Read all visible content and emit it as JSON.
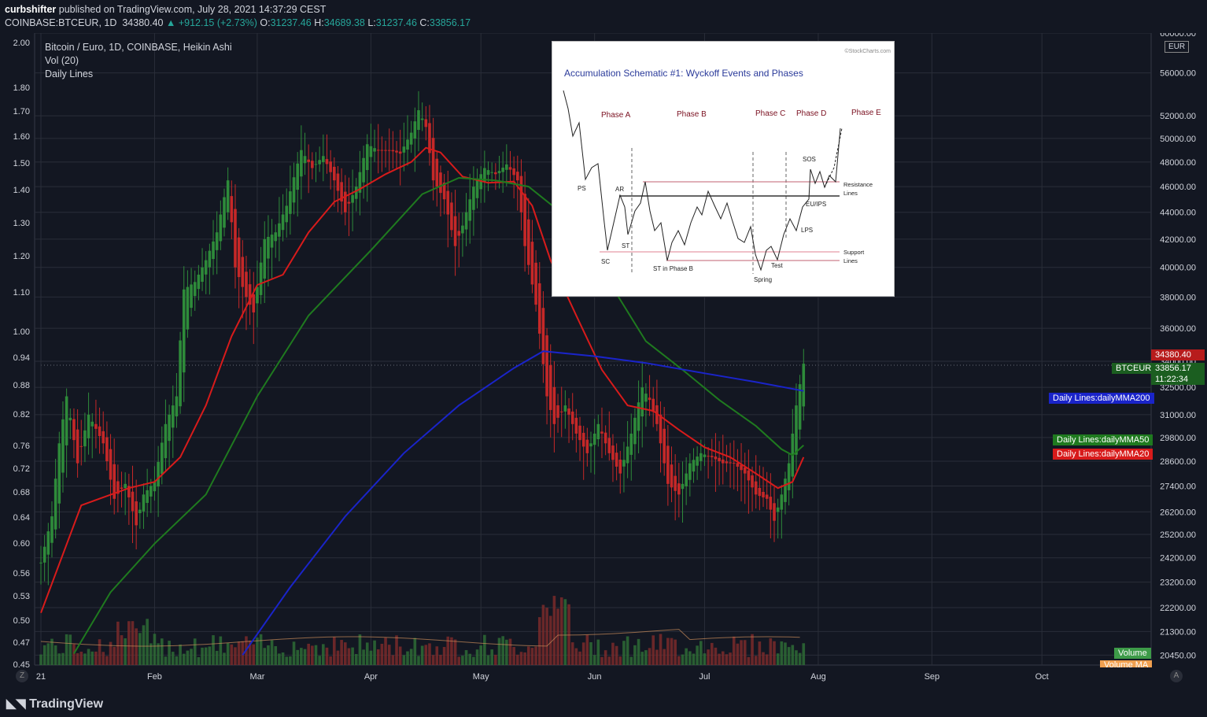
{
  "header": {
    "publisher": "curbshifter",
    "published_text": "published on TradingView.com, July 28, 2021 14:37:29 CEST",
    "symbol": "COINBASE:BTCEUR, 1D",
    "last": "34380.40",
    "change": "▲ +912.15 (+2.73%)",
    "o_label": "O:",
    "o": "31237.46",
    "h_label": "H:",
    "h": "34689.38",
    "l_label": "L:",
    "l": "31237.46",
    "c_label": "C:",
    "c": "33856.17"
  },
  "legend": {
    "title": "Bitcoin / Euro, 1D, COINBASE, Heikin Ashi",
    "vol": "Vol (20)",
    "lines": "Daily Lines"
  },
  "currency": "EUR",
  "price_tags": {
    "last": "34380.40",
    "symbol": "BTCEUR",
    "close": "33856.17",
    "countdown": "11:22:34",
    "mma200": "Daily Lines:dailyMMA200",
    "mma50": "Daily Lines:dailyMMA50",
    "mma20": "Daily Lines:dailyMMA20",
    "volume": "Volume",
    "volume_ma": "Volume MA"
  },
  "footer": {
    "logo": "TradingView",
    "zoom_left": "Z",
    "auto": "A"
  },
  "inset": {
    "watermark": "©StockCharts.com",
    "title": "Accumulation Schematic #1: Wyckoff Events and Phases",
    "phases": [
      "Phase A",
      "Phase B",
      "Phase C",
      "Phase D",
      "Phase E"
    ],
    "events": [
      "PS",
      "AR",
      "ST",
      "SC",
      "ST in Phase B",
      "Spring",
      "Test",
      "LPS",
      "EU/IPS",
      "SOS"
    ],
    "resistance": [
      "Resistance",
      "Lines"
    ],
    "support": [
      "Support",
      "Lines"
    ]
  },
  "colors": {
    "background": "#131722",
    "grid": "#2a2e39",
    "up": "#26a69a",
    "candle_up": "#2e8b3a",
    "candle_down": "#c62828",
    "mma20": "#d81b1b",
    "mma50": "#1f7a1f",
    "mma200": "#1a24c9"
  },
  "chart_data": {
    "type": "candlestick",
    "title": "Bitcoin / Euro, 1D, COINBASE, Heikin Ashi",
    "y_axis": {
      "ticks": [
        "60000.00",
        "56000.00",
        "52000.00",
        "50000.00",
        "48000.00",
        "46000.00",
        "44000.00",
        "42000.00",
        "40000.00",
        "38000.00",
        "36000.00",
        "34000.00",
        "32500.00",
        "31000.00",
        "29800.00",
        "28600.00",
        "27400.00",
        "26200.00",
        "25200.00",
        "24200.00",
        "23200.00",
        "22200.00",
        "21300.00",
        "20450.00"
      ],
      "scale": "log",
      "unit": "EUR"
    },
    "left_axis_ticks": [
      "2.00",
      "1.80",
      "1.70",
      "1.60",
      "1.50",
      "1.40",
      "1.30",
      "1.20",
      "1.10",
      "1.00",
      "0.94",
      "0.88",
      "0.82",
      "0.76",
      "0.72",
      "0.68",
      "0.64",
      "0.60",
      "0.56",
      "0.53",
      "0.50",
      "0.47",
      "0.45"
    ],
    "x_axis": {
      "ticks": [
        "21",
        "Feb",
        "Mar",
        "Apr",
        "May",
        "Jun",
        "Jul",
        "Aug",
        "Sep",
        "Oct"
      ]
    },
    "close_series": [
      [
        "2021-01-01",
        24000
      ],
      [
        "2021-01-04",
        26000
      ],
      [
        "2021-01-06",
        29500
      ],
      [
        "2021-01-08",
        32000
      ],
      [
        "2021-01-11",
        28500
      ],
      [
        "2021-01-14",
        31000
      ],
      [
        "2021-01-18",
        29500
      ],
      [
        "2021-01-21",
        26800
      ],
      [
        "2021-01-24",
        27500
      ],
      [
        "2021-01-27",
        25600
      ],
      [
        "2021-01-29",
        27000
      ],
      [
        "2021-02-01",
        27600
      ],
      [
        "2021-02-04",
        30500
      ],
      [
        "2021-02-07",
        32000
      ],
      [
        "2021-02-09",
        38500
      ],
      [
        "2021-02-12",
        39000
      ],
      [
        "2021-02-15",
        40500
      ],
      [
        "2021-02-18",
        42500
      ],
      [
        "2021-02-21",
        46500
      ],
      [
        "2021-02-23",
        40000
      ],
      [
        "2021-02-26",
        38000
      ],
      [
        "2021-02-28",
        37000
      ],
      [
        "2021-03-03",
        42000
      ],
      [
        "2021-03-06",
        42500
      ],
      [
        "2021-03-09",
        44500
      ],
      [
        "2021-03-13",
        49000
      ],
      [
        "2021-03-16",
        47500
      ],
      [
        "2021-03-19",
        48500
      ],
      [
        "2021-03-22",
        46500
      ],
      [
        "2021-03-25",
        44000
      ],
      [
        "2021-03-28",
        46000
      ],
      [
        "2021-03-31",
        49500
      ],
      [
        "2021-04-03",
        49000
      ],
      [
        "2021-04-06",
        49000
      ],
      [
        "2021-04-09",
        48700
      ],
      [
        "2021-04-12",
        50500
      ],
      [
        "2021-04-14",
        52500
      ],
      [
        "2021-04-16",
        51000
      ],
      [
        "2021-04-18",
        46500
      ],
      [
        "2021-04-21",
        45000
      ],
      [
        "2021-04-24",
        41500
      ],
      [
        "2021-04-26",
        43000
      ],
      [
        "2021-04-29",
        46000
      ],
      [
        "2021-05-02",
        47500
      ],
      [
        "2021-05-05",
        47000
      ],
      [
        "2021-05-08",
        47800
      ],
      [
        "2021-05-11",
        46500
      ],
      [
        "2021-05-13",
        41500
      ],
      [
        "2021-05-16",
        37500
      ],
      [
        "2021-05-19",
        32000
      ],
      [
        "2021-05-21",
        30500
      ],
      [
        "2021-05-24",
        31500
      ],
      [
        "2021-05-27",
        30000
      ],
      [
        "2021-05-30",
        29000
      ],
      [
        "2021-06-02",
        30500
      ],
      [
        "2021-06-05",
        29000
      ],
      [
        "2021-06-08",
        28000
      ],
      [
        "2021-06-11",
        30000
      ],
      [
        "2021-06-14",
        32500
      ],
      [
        "2021-06-16",
        31800
      ],
      [
        "2021-06-18",
        30500
      ],
      [
        "2021-06-21",
        27500
      ],
      [
        "2021-06-24",
        27000
      ],
      [
        "2021-06-27",
        28500
      ],
      [
        "2021-06-30",
        29000
      ],
      [
        "2021-07-03",
        28800
      ],
      [
        "2021-07-06",
        28500
      ],
      [
        "2021-07-09",
        28500
      ],
      [
        "2021-07-12",
        28000
      ],
      [
        "2021-07-15",
        27000
      ],
      [
        "2021-07-18",
        26800
      ],
      [
        "2021-07-20",
        25800
      ],
      [
        "2021-07-22",
        27000
      ],
      [
        "2021-07-24",
        28500
      ],
      [
        "2021-07-26",
        31500
      ],
      [
        "2021-07-28",
        33856.17
      ]
    ],
    "series": [
      {
        "name": "Daily Lines:dailyMMA20",
        "values": [
          [
            "2021-01-01",
            22000
          ],
          [
            "2021-01-12",
            26500
          ],
          [
            "2021-01-25",
            27300
          ],
          [
            "2021-02-01",
            27600
          ],
          [
            "2021-02-08",
            28800
          ],
          [
            "2021-02-15",
            31500
          ],
          [
            "2021-02-22",
            35500
          ],
          [
            "2021-03-01",
            38800
          ],
          [
            "2021-03-08",
            39500
          ],
          [
            "2021-03-15",
            42500
          ],
          [
            "2021-03-22",
            44800
          ],
          [
            "2021-03-29",
            45800
          ],
          [
            "2021-04-05",
            47000
          ],
          [
            "2021-04-12",
            48000
          ],
          [
            "2021-04-16",
            49200
          ],
          [
            "2021-04-20",
            48800
          ],
          [
            "2021-04-26",
            46800
          ],
          [
            "2021-05-03",
            46300
          ],
          [
            "2021-05-10",
            46400
          ],
          [
            "2021-05-15",
            44500
          ],
          [
            "2021-05-20",
            40500
          ],
          [
            "2021-05-27",
            36800
          ],
          [
            "2021-06-03",
            33500
          ],
          [
            "2021-06-10",
            31500
          ],
          [
            "2021-06-17",
            31200
          ],
          [
            "2021-06-24",
            30200
          ],
          [
            "2021-07-01",
            29300
          ],
          [
            "2021-07-08",
            28800
          ],
          [
            "2021-07-15",
            28000
          ],
          [
            "2021-07-21",
            27300
          ],
          [
            "2021-07-25",
            27600
          ],
          [
            "2021-07-28",
            28800
          ]
        ]
      },
      {
        "name": "Daily Lines:dailyMMA50",
        "values": [
          [
            "2021-01-10",
            20500
          ],
          [
            "2021-01-20",
            22800
          ],
          [
            "2021-02-01",
            24800
          ],
          [
            "2021-02-15",
            27000
          ],
          [
            "2021-03-01",
            32000
          ],
          [
            "2021-03-15",
            36800
          ],
          [
            "2021-04-01",
            41200
          ],
          [
            "2021-04-15",
            45400
          ],
          [
            "2021-04-25",
            46700
          ],
          [
            "2021-05-05",
            46500
          ],
          [
            "2021-05-14",
            46000
          ],
          [
            "2021-05-25",
            43500
          ],
          [
            "2021-06-05",
            39000
          ],
          [
            "2021-06-15",
            35200
          ],
          [
            "2021-06-25",
            33500
          ],
          [
            "2021-07-05",
            31800
          ],
          [
            "2021-07-15",
            30400
          ],
          [
            "2021-07-22",
            29200
          ],
          [
            "2021-07-25",
            28900
          ],
          [
            "2021-07-28",
            29400
          ]
        ]
      },
      {
        "name": "Daily Lines:dailyMMA200",
        "values": [
          [
            "2021-02-25",
            20450
          ],
          [
            "2021-03-10",
            23000
          ],
          [
            "2021-03-25",
            26000
          ],
          [
            "2021-04-10",
            29000
          ],
          [
            "2021-04-25",
            31500
          ],
          [
            "2021-05-10",
            33600
          ],
          [
            "2021-05-18",
            34600
          ],
          [
            "2021-06-01",
            34300
          ],
          [
            "2021-06-15",
            33900
          ],
          [
            "2021-07-01",
            33300
          ],
          [
            "2021-07-15",
            32800
          ],
          [
            "2021-07-28",
            32300
          ]
        ]
      }
    ]
  }
}
